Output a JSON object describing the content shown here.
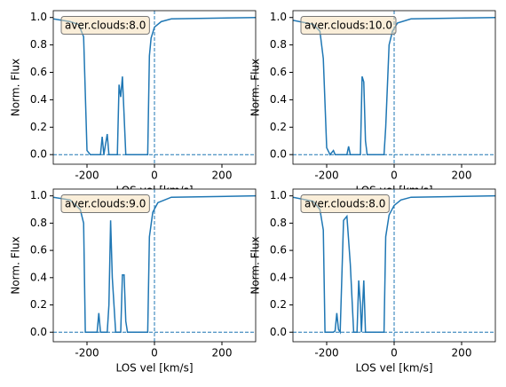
{
  "chart_data": [
    {
      "type": "line",
      "annotation": "aver.clouds:8.0",
      "xlabel": "LOS vel [km/s]",
      "ylabel": "Norm. Flux",
      "color": "#1f77b4",
      "x": [
        -300,
        -250,
        -225,
        -210,
        -200,
        -190,
        -160,
        -155,
        -150,
        -140,
        -135,
        -110,
        -105,
        -100,
        -95,
        -85,
        -20,
        -15,
        -10,
        0,
        20,
        50,
        300
      ],
      "values": [
        0.99,
        0.97,
        0.95,
        0.86,
        0.03,
        0.0,
        0.0,
        0.13,
        0.0,
        0.15,
        0.0,
        0.0,
        0.51,
        0.42,
        0.57,
        0.0,
        0.0,
        0.72,
        0.85,
        0.93,
        0.97,
        0.99,
        1.0
      ],
      "xlim": [
        -300,
        300
      ],
      "ylim": [
        -0.07,
        1.05
      ],
      "xticks": [
        -200,
        0,
        200
      ],
      "yticks": [
        {
          "value": 0,
          "label": "0.0"
        },
        {
          "value": 0.2,
          "label": "0.2"
        },
        {
          "value": 0.4,
          "label": "0.4"
        },
        {
          "value": 0.6,
          "label": "0.6"
        },
        {
          "value": 0.8,
          "label": "0.8"
        },
        {
          "value": 1,
          "label": "1.0"
        }
      ],
      "vline": 0,
      "hline": 0
    },
    {
      "type": "line",
      "annotation": "aver.clouds:10.0",
      "xlabel": "LOS vel [km/s]",
      "ylabel": "Norm. Flux",
      "color": "#1f77b4",
      "x": [
        -300,
        -240,
        -220,
        -210,
        -200,
        -190,
        -180,
        -175,
        -140,
        -135,
        -130,
        -100,
        -95,
        -90,
        -85,
        -80,
        -30,
        -25,
        -15,
        -5,
        10,
        50,
        300
      ],
      "values": [
        0.98,
        0.95,
        0.9,
        0.7,
        0.05,
        0.0,
        0.03,
        0.0,
        0.0,
        0.06,
        0.0,
        0.0,
        0.57,
        0.53,
        0.1,
        0.0,
        0.0,
        0.2,
        0.8,
        0.9,
        0.96,
        0.99,
        1.0
      ],
      "xlim": [
        -300,
        300
      ],
      "ylim": [
        -0.07,
        1.05
      ],
      "xticks": [
        -200,
        0,
        200
      ],
      "yticks": [
        {
          "value": 0,
          "label": "0.0"
        },
        {
          "value": 0.2,
          "label": "0.2"
        },
        {
          "value": 0.4,
          "label": "0.4"
        },
        {
          "value": 0.6,
          "label": "0.6"
        },
        {
          "value": 0.8,
          "label": "0.8"
        },
        {
          "value": 1,
          "label": "1.0"
        }
      ],
      "vline": 0,
      "hline": 0
    },
    {
      "type": "line",
      "annotation": "aver.clouds:9.0",
      "xlabel": "LOS vel [km/s]",
      "ylabel": "Norm. Flux",
      "color": "#1f77b4",
      "x": [
        -300,
        -250,
        -220,
        -210,
        -205,
        -170,
        -165,
        -160,
        -140,
        -135,
        -130,
        -125,
        -115,
        -100,
        -95,
        -90,
        -85,
        -80,
        -20,
        -15,
        -5,
        10,
        50,
        300
      ],
      "values": [
        0.99,
        0.97,
        0.9,
        0.8,
        0.0,
        0.0,
        0.14,
        0.0,
        0.0,
        0.2,
        0.82,
        0.4,
        0.0,
        0.0,
        0.42,
        0.42,
        0.08,
        0.0,
        0.0,
        0.7,
        0.88,
        0.95,
        0.99,
        1.0
      ],
      "xlim": [
        -300,
        300
      ],
      "ylim": [
        -0.07,
        1.05
      ],
      "xticks": [
        -200,
        0,
        200
      ],
      "yticks": [
        {
          "value": 0,
          "label": "0.0"
        },
        {
          "value": 0.2,
          "label": "0.2"
        },
        {
          "value": 0.4,
          "label": "0.4"
        },
        {
          "value": 0.6,
          "label": "0.6"
        },
        {
          "value": 0.8,
          "label": "0.8"
        },
        {
          "value": 1,
          "label": "1.0"
        }
      ],
      "vline": 0,
      "hline": 0
    },
    {
      "type": "line",
      "annotation": "aver.clouds:8.0",
      "xlabel": "LOS vel [km/s]",
      "ylabel": "Norm. Flux",
      "color": "#1f77b4",
      "x": [
        -300,
        -240,
        -220,
        -210,
        -205,
        -180,
        -175,
        -170,
        -165,
        -160,
        -150,
        -140,
        -130,
        -120,
        -110,
        -105,
        -100,
        -97,
        -90,
        -85,
        -30,
        -25,
        -15,
        0,
        20,
        50,
        300
      ],
      "values": [
        0.99,
        0.96,
        0.9,
        0.75,
        0.0,
        0.0,
        0.01,
        0.14,
        0.02,
        0.0,
        0.82,
        0.85,
        0.5,
        0.0,
        0.0,
        0.38,
        0.2,
        0.0,
        0.38,
        0.0,
        0.0,
        0.7,
        0.86,
        0.93,
        0.97,
        0.99,
        1.0
      ],
      "xlim": [
        -300,
        300
      ],
      "ylim": [
        -0.07,
        1.05
      ],
      "xticks": [
        -200,
        0,
        200
      ],
      "yticks": [
        {
          "value": 0,
          "label": "0.0"
        },
        {
          "value": 0.2,
          "label": "0.2"
        },
        {
          "value": 0.4,
          "label": "0.4"
        },
        {
          "value": 0.6,
          "label": "0.6"
        },
        {
          "value": 0.8,
          "label": "0.8"
        },
        {
          "value": 1,
          "label": "1.0"
        }
      ],
      "vline": 0,
      "hline": 0
    }
  ]
}
